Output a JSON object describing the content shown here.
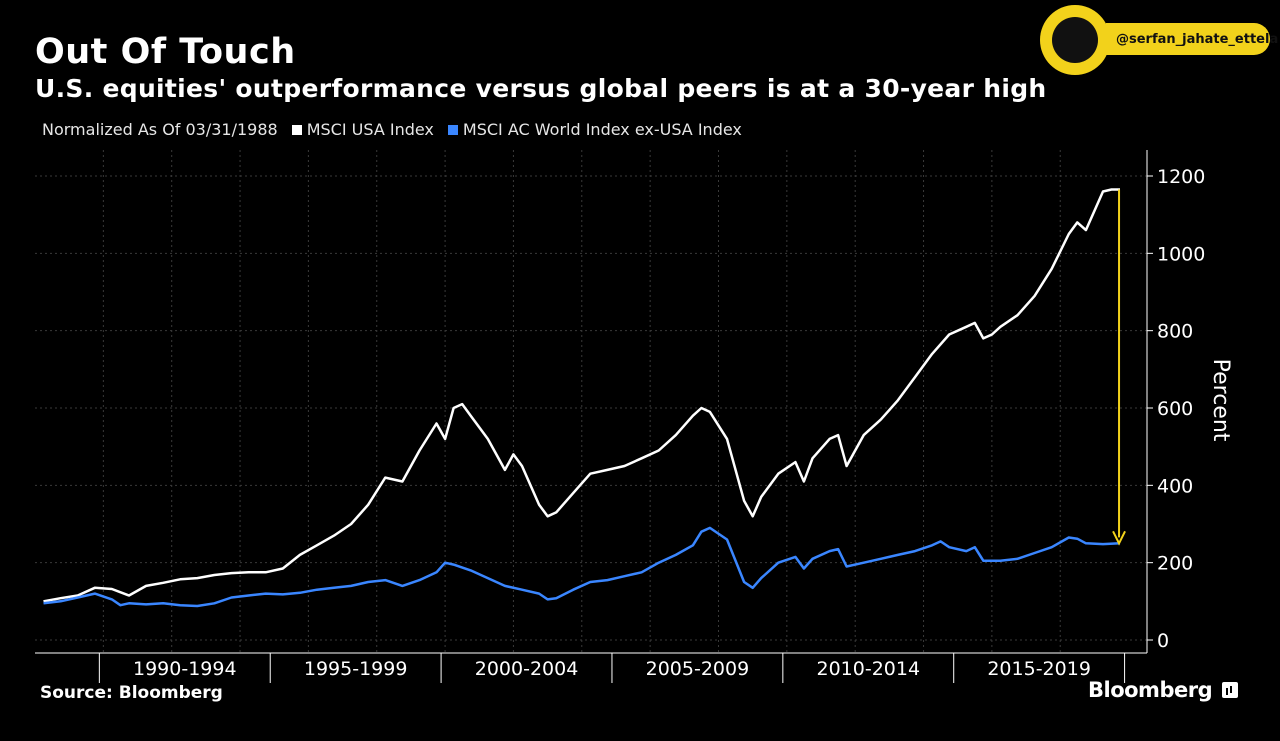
{
  "title": "Out Of Touch",
  "subtitle": "U.S. equities' outperformance versus global peers is at a 30-year high",
  "watermark": {
    "handle": "@serfan_jahate_ettela"
  },
  "source": "Source: Bloomberg",
  "brand": "Bloomberg",
  "colors": {
    "usa": "#ffffff",
    "world": "#3a86ff",
    "arrow": "#f2d21b",
    "grid": "#3a3a3a"
  },
  "chart_data": {
    "type": "line",
    "note": "Normalized As Of 03/31/1988",
    "xlabel": "",
    "ylabel": "Percent",
    "ylim": [
      0,
      1200
    ],
    "yticks": [
      0,
      200,
      400,
      600,
      800,
      1000,
      1200
    ],
    "xlim": [
      1988.25,
      2019.75
    ],
    "x_categories": [
      "1990-1994",
      "1995-1999",
      "2000-2004",
      "2005-2009",
      "2010-2014",
      "2015-2019"
    ],
    "grid": true,
    "legend_position": "top-left",
    "series": [
      {
        "name": "MSCI USA Index",
        "color": "#ffffff",
        "points": [
          [
            1988.25,
            100
          ],
          [
            1988.75,
            108
          ],
          [
            1989.25,
            115
          ],
          [
            1989.75,
            135
          ],
          [
            1990.25,
            132
          ],
          [
            1990.75,
            115
          ],
          [
            1991.25,
            140
          ],
          [
            1991.75,
            148
          ],
          [
            1992.25,
            157
          ],
          [
            1992.75,
            160
          ],
          [
            1993.25,
            168
          ],
          [
            1993.75,
            173
          ],
          [
            1994.25,
            175
          ],
          [
            1994.75,
            175
          ],
          [
            1995.25,
            185
          ],
          [
            1995.75,
            220
          ],
          [
            1996.25,
            245
          ],
          [
            1996.75,
            270
          ],
          [
            1997.25,
            300
          ],
          [
            1997.75,
            350
          ],
          [
            1998.25,
            420
          ],
          [
            1998.75,
            410
          ],
          [
            1999.25,
            490
          ],
          [
            1999.75,
            560
          ],
          [
            2000.0,
            520
          ],
          [
            2000.25,
            600
          ],
          [
            2000.5,
            610
          ],
          [
            2000.75,
            580
          ],
          [
            2001.25,
            520
          ],
          [
            2001.75,
            440
          ],
          [
            2002.0,
            480
          ],
          [
            2002.25,
            450
          ],
          [
            2002.75,
            350
          ],
          [
            2003.0,
            320
          ],
          [
            2003.25,
            330
          ],
          [
            2003.75,
            380
          ],
          [
            2004.25,
            430
          ],
          [
            2004.75,
            440
          ],
          [
            2005.25,
            450
          ],
          [
            2005.75,
            470
          ],
          [
            2006.25,
            490
          ],
          [
            2006.75,
            530
          ],
          [
            2007.25,
            580
          ],
          [
            2007.5,
            600
          ],
          [
            2007.75,
            590
          ],
          [
            2008.25,
            520
          ],
          [
            2008.75,
            360
          ],
          [
            2009.0,
            320
          ],
          [
            2009.25,
            370
          ],
          [
            2009.75,
            430
          ],
          [
            2010.25,
            460
          ],
          [
            2010.5,
            410
          ],
          [
            2010.75,
            470
          ],
          [
            2011.25,
            520
          ],
          [
            2011.5,
            530
          ],
          [
            2011.75,
            450
          ],
          [
            2012.25,
            530
          ],
          [
            2012.75,
            570
          ],
          [
            2013.25,
            620
          ],
          [
            2013.75,
            680
          ],
          [
            2014.25,
            740
          ],
          [
            2014.75,
            790
          ],
          [
            2015.25,
            810
          ],
          [
            2015.5,
            820
          ],
          [
            2015.75,
            780
          ],
          [
            2016.0,
            790
          ],
          [
            2016.25,
            810
          ],
          [
            2016.75,
            840
          ],
          [
            2017.25,
            890
          ],
          [
            2017.75,
            960
          ],
          [
            2018.25,
            1050
          ],
          [
            2018.5,
            1080
          ],
          [
            2018.75,
            1060
          ],
          [
            2019.25,
            1160
          ],
          [
            2019.5,
            1165
          ],
          [
            2019.75,
            1165
          ]
        ]
      },
      {
        "name": "MSCI AC World Index ex-USA Index",
        "color": "#3a86ff",
        "points": [
          [
            1988.25,
            95
          ],
          [
            1988.75,
            100
          ],
          [
            1989.25,
            110
          ],
          [
            1989.75,
            120
          ],
          [
            1990.25,
            105
          ],
          [
            1990.5,
            90
          ],
          [
            1990.75,
            95
          ],
          [
            1991.25,
            92
          ],
          [
            1991.75,
            95
          ],
          [
            1992.25,
            90
          ],
          [
            1992.75,
            88
          ],
          [
            1993.25,
            95
          ],
          [
            1993.75,
            110
          ],
          [
            1994.25,
            115
          ],
          [
            1994.75,
            120
          ],
          [
            1995.25,
            118
          ],
          [
            1995.75,
            122
          ],
          [
            1996.25,
            130
          ],
          [
            1996.75,
            135
          ],
          [
            1997.25,
            140
          ],
          [
            1997.75,
            150
          ],
          [
            1998.25,
            155
          ],
          [
            1998.75,
            140
          ],
          [
            1999.25,
            155
          ],
          [
            1999.75,
            175
          ],
          [
            2000.0,
            200
          ],
          [
            2000.25,
            195
          ],
          [
            2000.75,
            180
          ],
          [
            2001.25,
            160
          ],
          [
            2001.75,
            140
          ],
          [
            2002.25,
            130
          ],
          [
            2002.75,
            120
          ],
          [
            2003.0,
            105
          ],
          [
            2003.25,
            108
          ],
          [
            2003.75,
            130
          ],
          [
            2004.25,
            150
          ],
          [
            2004.75,
            155
          ],
          [
            2005.25,
            165
          ],
          [
            2005.75,
            175
          ],
          [
            2006.25,
            200
          ],
          [
            2006.75,
            220
          ],
          [
            2007.25,
            245
          ],
          [
            2007.5,
            280
          ],
          [
            2007.75,
            290
          ],
          [
            2008.25,
            260
          ],
          [
            2008.75,
            150
          ],
          [
            2009.0,
            135
          ],
          [
            2009.25,
            160
          ],
          [
            2009.75,
            200
          ],
          [
            2010.25,
            215
          ],
          [
            2010.5,
            185
          ],
          [
            2010.75,
            210
          ],
          [
            2011.25,
            230
          ],
          [
            2011.5,
            235
          ],
          [
            2011.75,
            190
          ],
          [
            2012.25,
            200
          ],
          [
            2012.75,
            210
          ],
          [
            2013.25,
            220
          ],
          [
            2013.75,
            230
          ],
          [
            2014.25,
            245
          ],
          [
            2014.5,
            255
          ],
          [
            2014.75,
            240
          ],
          [
            2015.25,
            230
          ],
          [
            2015.5,
            240
          ],
          [
            2015.75,
            205
          ],
          [
            2016.25,
            205
          ],
          [
            2016.75,
            210
          ],
          [
            2017.25,
            225
          ],
          [
            2017.75,
            240
          ],
          [
            2018.25,
            265
          ],
          [
            2018.5,
            262
          ],
          [
            2018.75,
            250
          ],
          [
            2019.25,
            248
          ],
          [
            2019.75,
            250
          ]
        ]
      }
    ],
    "annotation": {
      "type": "arrow",
      "x": 2019.75,
      "from": 1165,
      "to": 250
    }
  }
}
